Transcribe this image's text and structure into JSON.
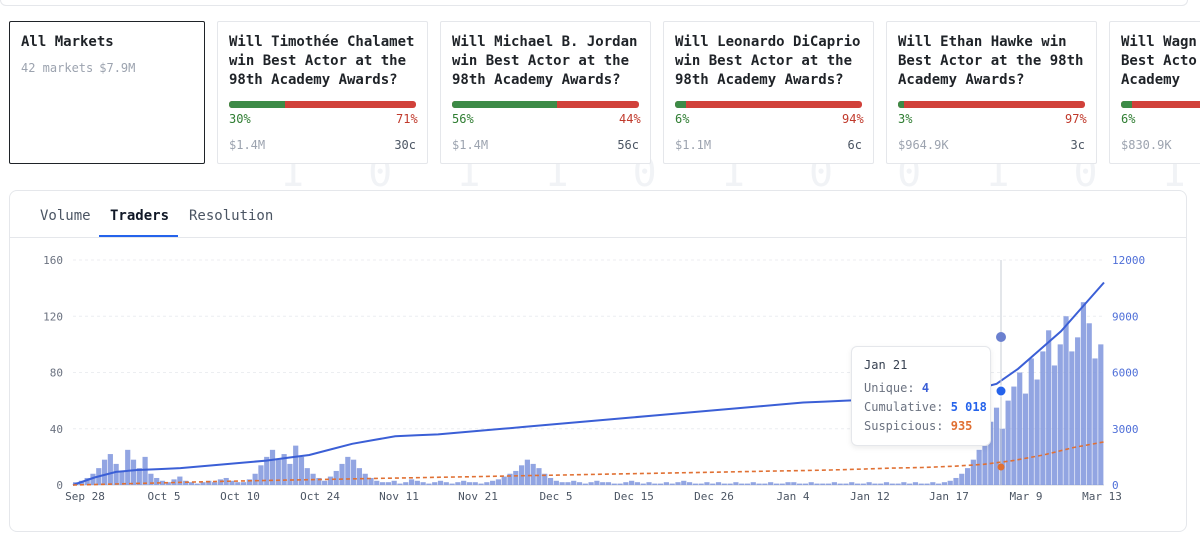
{
  "markets": [
    {
      "title": "All Markets",
      "count": "42 markets",
      "volume": "$7.9M"
    },
    {
      "title": "Will Timothée Chalamet win Best Actor at the 98th Academy Awards?",
      "yes": 30,
      "no": 71,
      "yes_label": "30%",
      "no_label": "71%",
      "volume": "$1.4M",
      "price": "30c"
    },
    {
      "title": "Will Michael B. Jordan win Best Actor at the 98th Academy Awards?",
      "yes": 56,
      "no": 44,
      "yes_label": "56%",
      "no_label": "44%",
      "volume": "$1.4M",
      "price": "56c"
    },
    {
      "title": "Will Leonardo DiCaprio win Best Actor at the 98th Academy Awards?",
      "yes": 6,
      "no": 94,
      "yes_label": "6%",
      "no_label": "94%",
      "volume": "$1.1M",
      "price": "6c"
    },
    {
      "title": "Will Ethan Hawke win Best Actor at the 98th Academy Awards?",
      "yes": 3,
      "no": 97,
      "yes_label": "3%",
      "no_label": "97%",
      "volume": "$964.9K",
      "price": "3c"
    },
    {
      "title": "Will Wagn Best Acto Academy",
      "yes": 6,
      "no": 94,
      "yes_label": "6%",
      "no_label": "",
      "volume": "$830.9K",
      "price": ""
    }
  ],
  "tabs": [
    "Volume",
    "Traders",
    "Resolution"
  ],
  "active_tab": "Traders",
  "tooltip": {
    "date": "Jan 21",
    "unique_label": "Unique:",
    "unique": "4",
    "cumulative_label": "Cumulative:",
    "cumulative": "5 018",
    "suspicious_label": "Suspicious:",
    "suspicious": "935"
  },
  "colors": {
    "accent": "#2563eb",
    "bars": "#7f95dd",
    "cumulative": "#3b5fd6",
    "suspicious": "#e07033",
    "yes": "#3d8b47",
    "no": "#d1413a"
  },
  "chart_data": {
    "type": "bar",
    "x_ticks": [
      "Sep 28",
      "Oct 5",
      "Oct 10",
      "Oct 24",
      "Nov 11",
      "Nov 21",
      "Dec 5",
      "Dec 15",
      "Dec 26",
      "Jan 4",
      "Jan 12",
      "Jan 17",
      "Mar 9",
      "Mar 13"
    ],
    "y_left_ticks": [
      "160",
      "120",
      "80",
      "40",
      "0"
    ],
    "y_right_ticks": [
      "12000",
      "9000",
      "6000",
      "3000",
      "0"
    ],
    "ylim_left": [
      0,
      160
    ],
    "ylim_right": [
      0,
      12000
    ],
    "series": [
      {
        "axis": "left",
        "style": "bars",
        "values": [
          2,
          3,
          5,
          8,
          12,
          18,
          22,
          15,
          10,
          25,
          18,
          12,
          20,
          8,
          5,
          3,
          2,
          4,
          6,
          3,
          2,
          1,
          2,
          3,
          2,
          4,
          5,
          3,
          2,
          2,
          4,
          8,
          14,
          20,
          25,
          18,
          22,
          15,
          28,
          20,
          12,
          8,
          5,
          3,
          6,
          10,
          15,
          20,
          18,
          12,
          8,
          5,
          3,
          2,
          2,
          3,
          1,
          2,
          4,
          3,
          2,
          1,
          2,
          3,
          2,
          1,
          2,
          3,
          2,
          2,
          1,
          2,
          3,
          4,
          6,
          8,
          10,
          14,
          18,
          15,
          12,
          8,
          5,
          3,
          2,
          2,
          3,
          2,
          1,
          2,
          3,
          2,
          2,
          1,
          1,
          2,
          3,
          2,
          1,
          2,
          1,
          1,
          2,
          1,
          2,
          3,
          2,
          1,
          1,
          2,
          1,
          2,
          1,
          1,
          2,
          1,
          1,
          2,
          1,
          1,
          2,
          1,
          1,
          2,
          2,
          1,
          1,
          2,
          1,
          1,
          1,
          2,
          1,
          1,
          2,
          1,
          1,
          2,
          1,
          1,
          2,
          1,
          1,
          2,
          1,
          2,
          1,
          1,
          2,
          1,
          2,
          3,
          5,
          8,
          12,
          18,
          25,
          35,
          45,
          55,
          40,
          60,
          70,
          80,
          65,
          90,
          75,
          95,
          110,
          85,
          100,
          120,
          95,
          105,
          130,
          115,
          90,
          100
        ]
      },
      {
        "axis": "right",
        "style": "line",
        "values": [
          0,
          400,
          700,
          800,
          850,
          900,
          1000,
          1100,
          1200,
          1300,
          1450,
          1600,
          1900,
          2200,
          2400,
          2600,
          2650,
          2700,
          2800,
          2900,
          3000,
          3100,
          3200,
          3300,
          3400,
          3500,
          3600,
          3700,
          3800,
          3900,
          4000,
          4100,
          4200,
          4300,
          4400,
          4450,
          4500,
          4550,
          4600,
          4700,
          4800,
          5018,
          5100,
          5400,
          6200,
          7200,
          8200,
          9500,
          10800
        ]
      },
      {
        "axis": "right",
        "style": "dashed-line",
        "values": [
          0,
          40,
          80,
          120,
          160,
          200,
          230,
          260,
          290,
          320,
          350,
          380,
          410,
          440,
          470,
          500,
          530,
          560,
          590,
          620,
          650,
          680,
          710,
          740,
          770,
          800,
          850,
          900,
          935,
          1000,
          1100,
          1300,
          1600,
          2000,
          2300
        ]
      }
    ]
  }
}
